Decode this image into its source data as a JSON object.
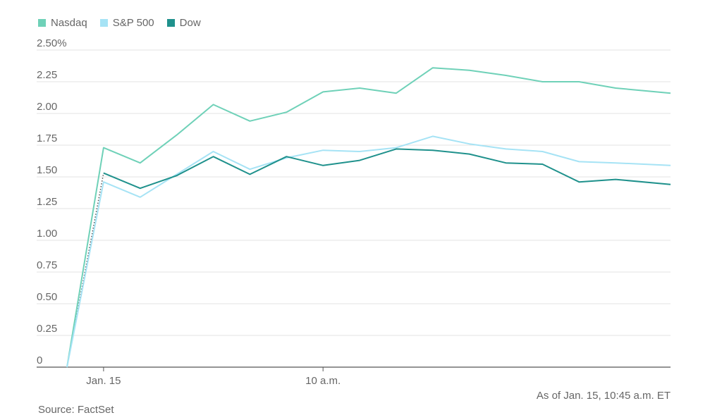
{
  "chart_data": {
    "type": "line",
    "title": "",
    "xlabel": "",
    "ylabel": "",
    "ylim": [
      0,
      2.5
    ],
    "yticks": [
      0,
      0.25,
      0.5,
      0.75,
      1.0,
      1.25,
      1.5,
      1.75,
      2.0,
      2.25,
      2.5
    ],
    "ytick_labels": [
      "0",
      "0.25",
      "0.50",
      "0.75",
      "1.00",
      "1.25",
      "1.50",
      "1.75",
      "2.00",
      "2.25",
      "2.50%"
    ],
    "xticks": [
      {
        "x": 1,
        "label": "Jan. 15"
      },
      {
        "x": 7,
        "label": "10 a.m."
      }
    ],
    "xlim": [
      0,
      16.5
    ],
    "grid": true,
    "legend_position": "top-left",
    "series": [
      {
        "name": "Nasdaq",
        "color": "#6fd1b8",
        "points": [
          [
            0,
            0
          ],
          [
            1,
            1.73
          ],
          [
            2,
            1.61
          ],
          [
            3,
            1.83
          ],
          [
            4,
            2.07
          ],
          [
            5,
            1.94
          ],
          [
            6,
            2.01
          ],
          [
            7,
            2.17
          ],
          [
            8,
            2.2
          ],
          [
            9,
            2.16
          ],
          [
            10,
            2.36
          ],
          [
            11,
            2.34
          ],
          [
            12,
            2.3
          ],
          [
            13,
            2.25
          ],
          [
            14,
            2.25
          ],
          [
            15,
            2.2
          ],
          [
            16.5,
            2.16
          ]
        ]
      },
      {
        "name": "S&P 500",
        "color": "#a6e3f5",
        "points": [
          [
            0,
            0
          ],
          [
            1,
            1.46
          ],
          [
            2,
            1.34
          ],
          [
            3,
            1.52
          ],
          [
            4,
            1.7
          ],
          [
            5,
            1.56
          ],
          [
            6,
            1.65
          ],
          [
            7,
            1.71
          ],
          [
            8,
            1.7
          ],
          [
            9,
            1.73
          ],
          [
            10,
            1.82
          ],
          [
            11,
            1.76
          ],
          [
            12,
            1.72
          ],
          [
            13,
            1.7
          ],
          [
            14,
            1.62
          ],
          [
            15,
            1.61
          ],
          [
            16.5,
            1.59
          ]
        ]
      },
      {
        "name": "Dow",
        "color": "#1f918c",
        "points": [
          [
            1,
            1.53
          ],
          [
            2,
            1.41
          ],
          [
            3,
            1.51
          ],
          [
            4,
            1.66
          ],
          [
            5,
            1.52
          ],
          [
            6,
            1.66
          ],
          [
            7,
            1.59
          ],
          [
            8,
            1.63
          ],
          [
            9,
            1.72
          ],
          [
            10,
            1.71
          ],
          [
            11,
            1.68
          ],
          [
            12,
            1.61
          ],
          [
            13,
            1.6
          ],
          [
            14,
            1.46
          ],
          [
            15,
            1.48
          ],
          [
            16.5,
            1.44
          ]
        ],
        "dotted_lead_in": [
          [
            0,
            0
          ],
          [
            1,
            1.53
          ]
        ]
      }
    ]
  },
  "footer": {
    "as_of": "As of Jan. 15, 10:45 a.m. ET",
    "source": "Source: FactSet"
  }
}
